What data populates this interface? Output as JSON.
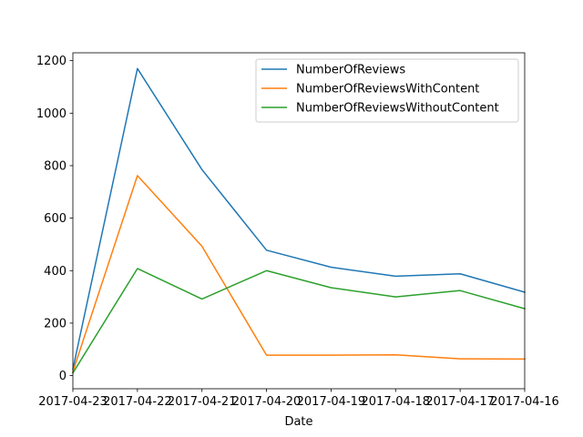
{
  "chart_data": {
    "type": "line",
    "title": "",
    "xlabel": "Date",
    "ylabel": "",
    "x": [
      "2017-04-23",
      "2017-04-22",
      "2017-04-21",
      "2017-04-20",
      "2017-04-19",
      "2017-04-18",
      "2017-04-17",
      "2017-04-16"
    ],
    "xlim": [
      "2017-04-23",
      "2017-04-16"
    ],
    "ylim": [
      -50,
      1230
    ],
    "yticks": [
      0,
      200,
      400,
      600,
      800,
      1000,
      1200
    ],
    "grid": false,
    "legend_position": "upper right",
    "series": [
      {
        "name": "NumberOfReviews",
        "color": "#1f77b4",
        "values": [
          25,
          1170,
          785,
          478,
          413,
          379,
          388,
          318
        ]
      },
      {
        "name": "NumberOfReviewsWithContent",
        "color": "#ff7f0e",
        "values": [
          15,
          762,
          493,
          78,
          78,
          79,
          64,
          63
        ]
      },
      {
        "name": "NumberOfReviewsWithoutContent",
        "color": "#2ca02c",
        "values": [
          10,
          408,
          292,
          400,
          335,
          300,
          324,
          255
        ]
      }
    ]
  }
}
